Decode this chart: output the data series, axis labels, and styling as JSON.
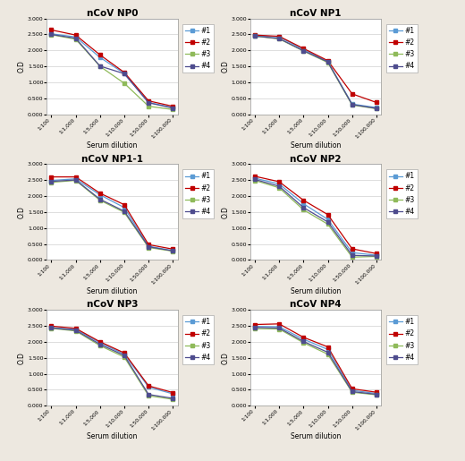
{
  "titles": [
    "nCoV NP0",
    "nCoV NP1",
    "nCoV NP1-1",
    "nCoV NP2",
    "nCoV NP3",
    "nCoV NP4"
  ],
  "x_labels": [
    "1:100",
    "1:1,000",
    "1:5,000",
    "1:10,000",
    "1:50,000",
    "1:100,000"
  ],
  "ylabel": "O.D",
  "xlabel": "Serum dilution",
  "ylim": [
    0.0,
    3.0
  ],
  "yticks": [
    0.0,
    0.5,
    1.0,
    1.5,
    2.0,
    2.5,
    3.0
  ],
  "ytick_labels": [
    "0.000",
    "0.500",
    "1.000",
    "1.500",
    "2.000",
    "2.500",
    "3.000"
  ],
  "legend_labels": [
    "#1",
    "#2",
    "#3",
    "#4"
  ],
  "colors": [
    "#5b9bd5",
    "#c00000",
    "#8fba5a",
    "#4e4c8e"
  ],
  "data": {
    "NP0": {
      "#1": [
        2.52,
        2.42,
        1.78,
        1.28,
        0.37,
        0.21
      ],
      "#2": [
        2.64,
        2.48,
        1.86,
        1.31,
        0.42,
        0.25
      ],
      "#3": [
        2.49,
        2.35,
        1.5,
        0.97,
        0.25,
        0.15
      ],
      "#4": [
        2.5,
        2.38,
        1.51,
        1.27,
        0.36,
        0.195
      ]
    },
    "NP1": {
      "#1": [
        2.46,
        2.42,
        2.03,
        1.65,
        0.32,
        0.21
      ],
      "#2": [
        2.48,
        2.44,
        2.06,
        1.68,
        0.64,
        0.37
      ],
      "#3": [
        2.445,
        2.36,
        1.98,
        1.62,
        0.29,
        0.175
      ],
      "#4": [
        2.45,
        2.37,
        1.99,
        1.64,
        0.305,
        0.185
      ]
    },
    "NP1-1": {
      "#1": [
        2.49,
        2.54,
        2.04,
        1.64,
        0.43,
        0.29
      ],
      "#2": [
        2.6,
        2.6,
        2.09,
        1.73,
        0.48,
        0.34
      ],
      "#3": [
        2.43,
        2.49,
        1.87,
        1.49,
        0.39,
        0.275
      ],
      "#4": [
        2.46,
        2.505,
        1.9,
        1.525,
        0.415,
        0.285
      ]
    },
    "NP2": {
      "#1": [
        2.56,
        2.38,
        1.76,
        1.27,
        0.23,
        0.15
      ],
      "#2": [
        2.62,
        2.45,
        1.87,
        1.42,
        0.35,
        0.2
      ],
      "#3": [
        2.49,
        2.26,
        1.57,
        1.12,
        0.09,
        0.11
      ],
      "#4": [
        2.52,
        2.31,
        1.64,
        1.19,
        0.145,
        0.125
      ]
    },
    "NP3": {
      "#1": [
        2.44,
        2.39,
        1.97,
        1.61,
        0.58,
        0.37
      ],
      "#2": [
        2.49,
        2.42,
        2.0,
        1.65,
        0.62,
        0.41
      ],
      "#3": [
        2.42,
        2.34,
        1.88,
        1.52,
        0.31,
        0.2
      ],
      "#4": [
        2.435,
        2.36,
        1.92,
        1.57,
        0.35,
        0.23
      ]
    },
    "NP4": {
      "#1": [
        2.48,
        2.47,
        2.08,
        1.76,
        0.48,
        0.38
      ],
      "#2": [
        2.54,
        2.56,
        2.14,
        1.84,
        0.53,
        0.42
      ],
      "#3": [
        2.41,
        2.4,
        1.97,
        1.61,
        0.42,
        0.34
      ],
      "#4": [
        2.45,
        2.43,
        2.01,
        1.67,
        0.44,
        0.355
      ]
    }
  },
  "bg_color": "#ede8e0",
  "plot_bg": "#ffffff",
  "grid_color": "#d0d0d0"
}
